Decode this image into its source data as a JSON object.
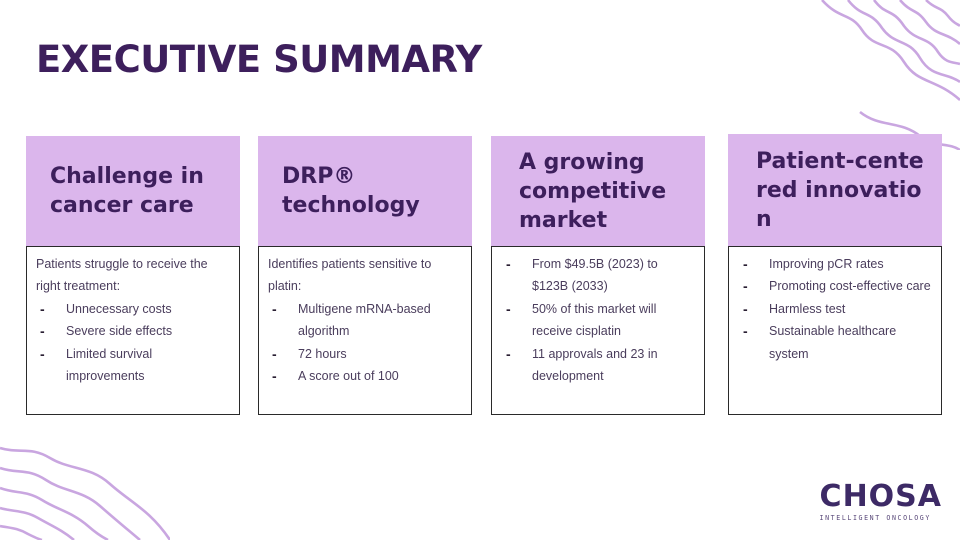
{
  "slide": {
    "title": "EXECUTIVE SUMMARY"
  },
  "cards": [
    {
      "heading": "Challenge in cancer care",
      "intro": "Patients struggle to receive the right treatment:",
      "items": [
        "Unnecessary costs",
        "Severe side effects",
        "Limited survival improvements"
      ]
    },
    {
      "heading": "DRP® technology",
      "intro": "Identifies patients sensitive to platin:",
      "items": [
        "Multigene mRNA-based algorithm",
        "72 hours",
        "A score out of 100"
      ]
    },
    {
      "heading": "A growing competitive market",
      "intro": "",
      "items": [
        "From $49.5B (2023) to $123B (2033)",
        "50% of this market will receive cisplatin",
        "11 approvals and 23 in development"
      ]
    },
    {
      "heading": "Patient-cente red innovation",
      "intro": "",
      "items": [
        "Improving pCR rates",
        "Promoting cost-effective care",
        "Harmless test",
        "Sustainable healthcare system"
      ]
    }
  ],
  "logo": {
    "word": "CHOSA",
    "tagline": "INTELLIGENT ONCOLOGY"
  },
  "colors": {
    "accent": "#dbb6ec",
    "title": "#3d1f5c",
    "decoration": "#c9a6e0"
  }
}
